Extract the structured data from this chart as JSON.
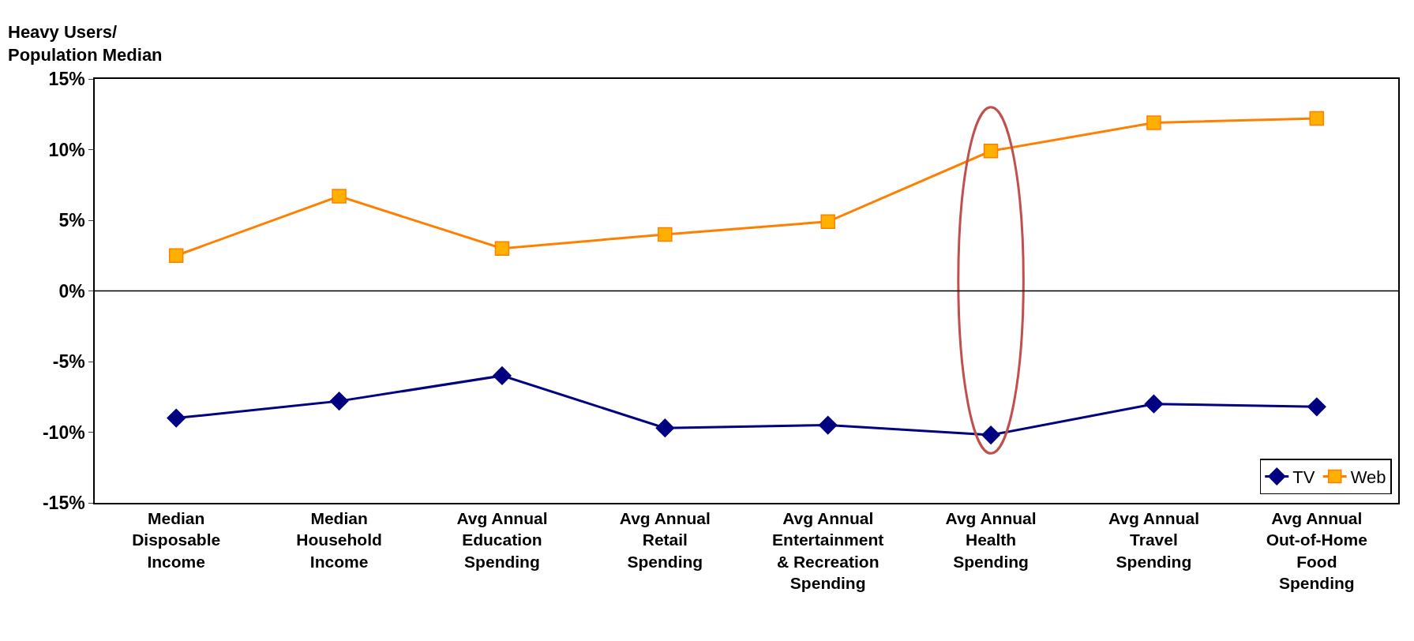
{
  "chart_data": {
    "type": "line",
    "ylabel": "Heavy Users/ Population Median",
    "categories": [
      "Median Disposable Income",
      "Median Household Income",
      "Avg Annual Education Spending",
      "Avg Annual Retail Spending",
      "Avg Annual Entertainment & Recreation Spending",
      "Avg Annual Health Spending",
      "Avg Annual Travel Spending",
      "Avg Annual Out-of-Home Food Spending"
    ],
    "series": [
      {
        "name": "TV",
        "color": "#000080",
        "marker": "diamond",
        "values": [
          -9.0,
          -7.8,
          -6.0,
          -9.7,
          -9.5,
          -10.2,
          -8.0,
          -8.2
        ]
      },
      {
        "name": "Web",
        "color": "#ff8000",
        "marker": "square",
        "values": [
          2.5,
          6.7,
          3.0,
          4.0,
          4.9,
          9.9,
          11.9,
          12.2
        ]
      }
    ],
    "ylim": [
      -15,
      15
    ],
    "yticks": [
      {
        "value": -15,
        "label": "-15%"
      },
      {
        "value": -10,
        "label": "-10%"
      },
      {
        "value": -5,
        "label": "-5%"
      },
      {
        "value": 0,
        "label": "0%"
      },
      {
        "value": 5,
        "label": "5%"
      },
      {
        "value": 10,
        "label": "10%"
      },
      {
        "value": 15,
        "label": "15%"
      }
    ],
    "ref_lines": [
      {
        "axis": "y",
        "value": 0,
        "color": "#000000"
      }
    ],
    "grid": false,
    "legend": "bottom right"
  }
}
